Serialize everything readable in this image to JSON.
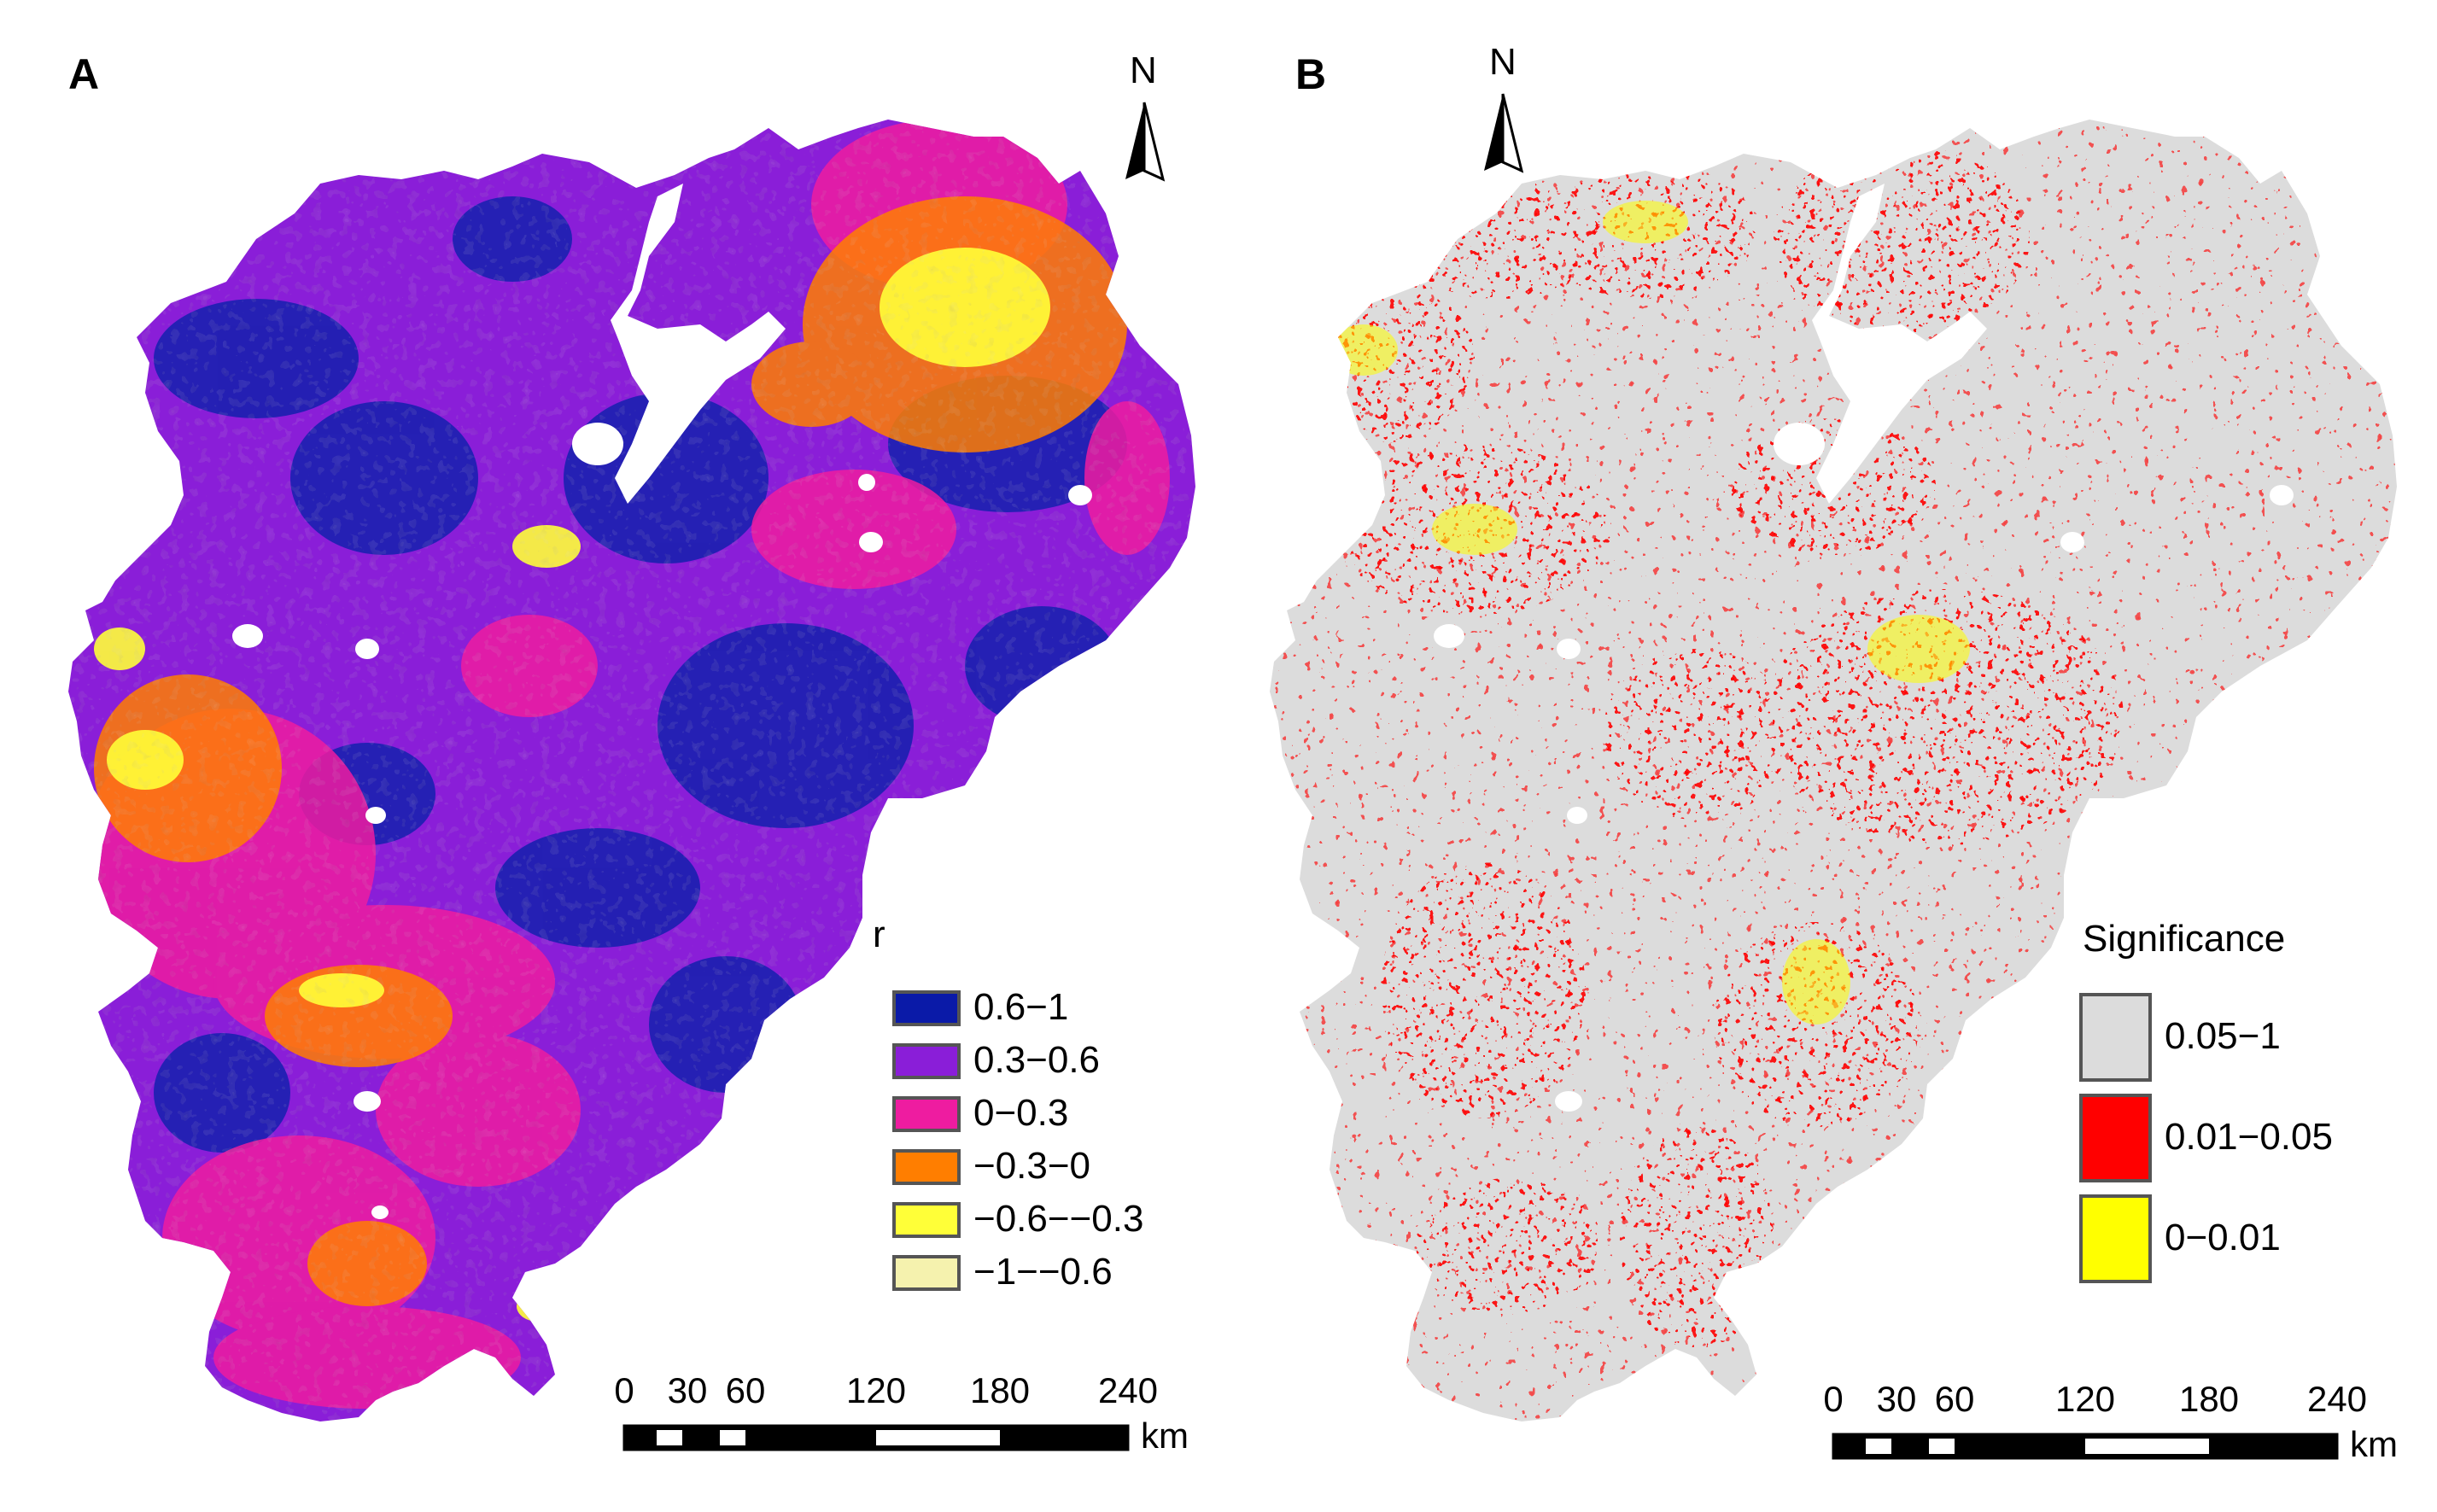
{
  "panel_a": {
    "letter": "A",
    "north": "N",
    "legend": {
      "title": "r",
      "items": [
        {
          "label": "0.6−1",
          "color": "#0a1aa8"
        },
        {
          "label": "0.3−0.6",
          "color": "#8a1ed8"
        },
        {
          "label": "0−0.3",
          "color": "#ee1ca0"
        },
        {
          "label": "−0.3−0",
          "color": "#ff7e00"
        },
        {
          "label": "−0.6−−0.3",
          "color": "#ffff38"
        },
        {
          "label": "−1−−0.6",
          "color": "#f5f2ae"
        }
      ]
    },
    "scale": {
      "ticks": [
        "0",
        "30",
        "60",
        "120",
        "180",
        "240"
      ],
      "unit": "km"
    }
  },
  "panel_b": {
    "letter": "B",
    "north": "N",
    "legend": {
      "title": "Significance",
      "items": [
        {
          "label": "0.05−1",
          "color": "#dcdcdc"
        },
        {
          "label": "0.01−0.05",
          "color": "#ff0000"
        },
        {
          "label": "0−0.01",
          "color": "#ffff00"
        }
      ]
    },
    "scale": {
      "ticks": [
        "0",
        "30",
        "60",
        "120",
        "180",
        "240"
      ],
      "unit": "km"
    }
  }
}
